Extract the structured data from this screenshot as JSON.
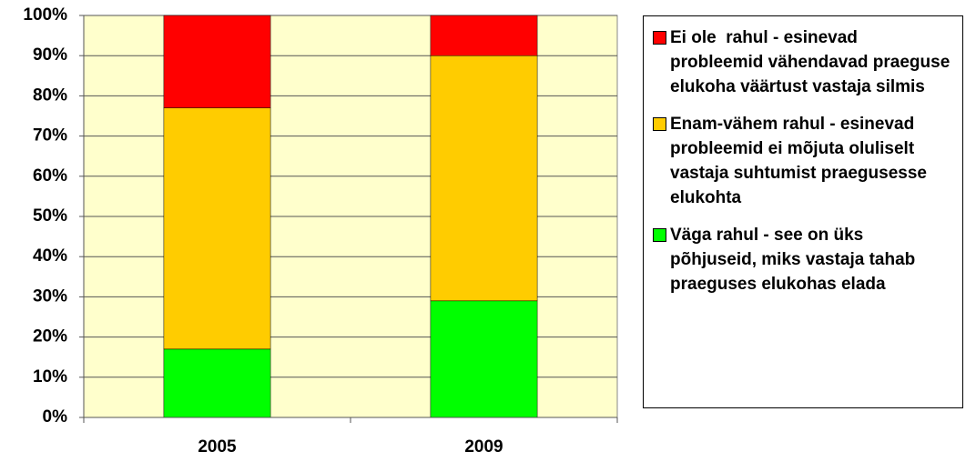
{
  "chart_data": {
    "type": "stacked_bar",
    "categories": [
      "2005",
      "2009"
    ],
    "series": [
      {
        "name": "Väga rahul - see on üks põhjuseid, miks vastaja tahab praeguses elukohas elada",
        "color": "#00ff00",
        "values": [
          17,
          29
        ]
      },
      {
        "name": "Enam-vähem rahul - esinevad probleemid ei mõjuta oluliselt vastaja suhtumist praegusesse elukohta",
        "color": "#ffcc00",
        "values": [
          60,
          61
        ]
      },
      {
        "name": "Ei ole  rahul - esinevad probleemid vähendavad praeguse elukoha väärtust vastaja silmis",
        "color": "#ff0000",
        "values": [
          23,
          10
        ]
      }
    ],
    "ylim": [
      0,
      100
    ],
    "yticks": [
      {
        "value": 0,
        "label": "0%"
      },
      {
        "value": 10,
        "label": "10%"
      },
      {
        "value": 20,
        "label": "20%"
      },
      {
        "value": 30,
        "label": "30%"
      },
      {
        "value": 40,
        "label": "40%"
      },
      {
        "value": 50,
        "label": "50%"
      },
      {
        "value": 60,
        "label": "60%"
      },
      {
        "value": 70,
        "label": "70%"
      },
      {
        "value": 80,
        "label": "80%"
      },
      {
        "value": 90,
        "label": "90%"
      },
      {
        "value": 100,
        "label": "100%"
      }
    ],
    "grid": true,
    "legend": "right",
    "background": "#ffffcc"
  }
}
